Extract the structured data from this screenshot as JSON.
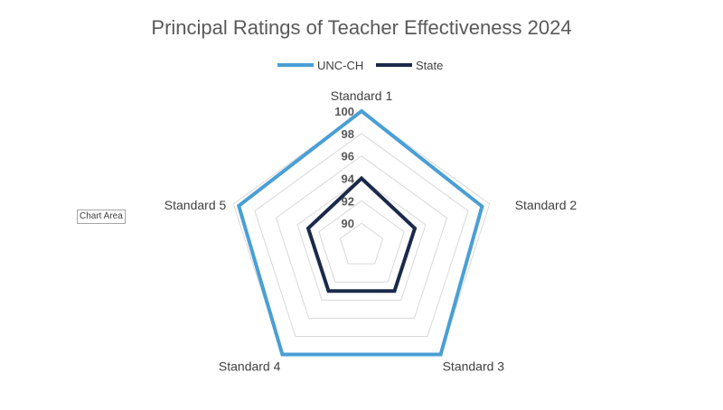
{
  "tooltip": "Chart Area",
  "chart_data": {
    "type": "radar",
    "title": "Principal Ratings of Teacher Effectiveness 2024",
    "categories": [
      "Standard 1",
      "Standard 2",
      "Standard 3",
      "Standard 4",
      "Standard 5"
    ],
    "ticks": [
      "90",
      "92",
      "94",
      "96",
      "98",
      "100"
    ],
    "rmin": 88,
    "rmax": 100,
    "gridlines": true,
    "legend_position": "top",
    "series": [
      {
        "name": "UNC-CH",
        "color": "#4a9fd5",
        "values": [
          100,
          99.3,
          100,
          100,
          99.5
        ]
      },
      {
        "name": "State",
        "color": "#1b2a4a",
        "values": [
          94,
          93.0,
          93.0,
          93.0,
          93.0
        ]
      }
    ],
    "grid_color": "#d9d9d9"
  }
}
